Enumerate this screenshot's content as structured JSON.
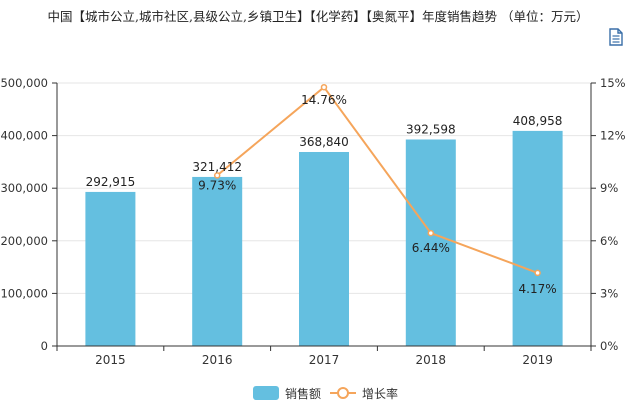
{
  "title": "中国【城市公立,城市社区,县级公立,乡镇卫生】【化学药】【奥氮平】年度销售趋势 （单位：万元）",
  "toolbar": {
    "icon": "document-icon"
  },
  "colors": {
    "bar": "#64bfe0",
    "line": "#f5a55b",
    "axis": "#333333",
    "grid": "#e6e6e6"
  },
  "chart_data": {
    "type": "bar",
    "categories": [
      "2015",
      "2016",
      "2017",
      "2018",
      "2019"
    ],
    "series": [
      {
        "name": "销售额",
        "type": "bar",
        "axis": "left",
        "values": [
          292915,
          321412,
          368840,
          392598,
          408958
        ],
        "labels": [
          "292,915",
          "321,412",
          "368,840",
          "392,598",
          "408,958"
        ]
      },
      {
        "name": "增长率",
        "type": "line",
        "axis": "right",
        "values": [
          null,
          9.73,
          14.76,
          6.44,
          4.17
        ],
        "labels": [
          "",
          "9.73%",
          "14.76%",
          "6.44%",
          "4.17%"
        ]
      }
    ],
    "y_left": {
      "ylim": [
        0,
        500000
      ],
      "ticks": [
        "0",
        "100,000",
        "200,000",
        "300,000",
        "400,000",
        "500,000"
      ]
    },
    "y_right": {
      "ylim": [
        0,
        15
      ],
      "ticks": [
        "0%",
        "3%",
        "6%",
        "9%",
        "12%",
        "15%"
      ]
    },
    "grid": true,
    "legend": "bottom-center"
  }
}
